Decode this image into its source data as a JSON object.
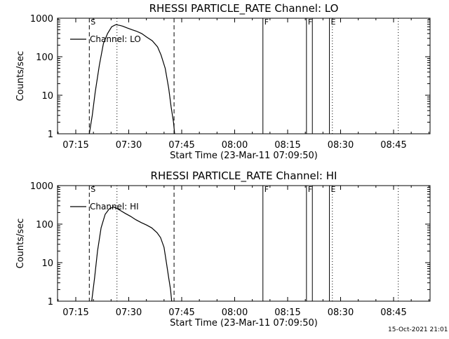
{
  "timestamp": "15-Oct-2021 21:01",
  "chart_data": [
    {
      "type": "line",
      "title": "RHESSI PARTICLE_RATE Channel: LO",
      "xlabel": "Start Time (23-Mar-11 07:09:50)",
      "ylabel": "Counts/sec",
      "yscale": "log",
      "ylim": [
        1,
        1000
      ],
      "xlim": [
        "07:09:50",
        "08:55:20"
      ],
      "x_ticks": [
        "07:15",
        "07:30",
        "07:45",
        "08:00",
        "08:15",
        "08:30",
        "08:45"
      ],
      "y_ticks": [
        "1",
        "10",
        "100",
        "1000"
      ],
      "legend": {
        "position": "top-left"
      },
      "grid": false,
      "series": [
        {
          "name": "Channel: LO",
          "x": [
            "07:18:50",
            "07:19:40",
            "07:20:30",
            "07:21:40",
            "07:22:50",
            "07:24:00",
            "07:25:10",
            "07:26:20",
            "07:27:30",
            "07:28:20",
            "07:29:30",
            "07:31:00",
            "07:32:10",
            "07:33:40",
            "07:35:10",
            "07:36:40",
            "07:38:10",
            "07:39:10",
            "07:40:20",
            "07:41:20",
            "07:42:00",
            "07:42:40",
            "07:43:00"
          ],
          "values": [
            1,
            3,
            12,
            60,
            220,
            400,
            600,
            680,
            650,
            620,
            560,
            500,
            460,
            400,
            320,
            260,
            180,
            110,
            50,
            15,
            5,
            2,
            1
          ]
        }
      ],
      "annotations": [
        {
          "x": "07:18:50",
          "style": "dashed",
          "label": "S"
        },
        {
          "x": "07:42:50",
          "style": "dashed",
          "label": ""
        },
        {
          "x": "07:26:40",
          "style": "dotted",
          "label": ""
        },
        {
          "x": "08:08:00",
          "style": "solid",
          "label": "F"
        },
        {
          "x": "08:20:20",
          "style": "solid",
          "label": "F"
        },
        {
          "x": "08:22:00",
          "style": "solid",
          "label": ""
        },
        {
          "x": "08:26:50",
          "style": "solid",
          "label": "E"
        },
        {
          "x": "08:27:40",
          "style": "dotted",
          "label": ""
        },
        {
          "x": "08:46:20",
          "style": "dotted",
          "label": ""
        }
      ]
    },
    {
      "type": "line",
      "title": "RHESSI PARTICLE_RATE Channel: HI",
      "xlabel": "Start Time (23-Mar-11 07:09:50)",
      "ylabel": "Counts/sec",
      "yscale": "log",
      "ylim": [
        1,
        1000
      ],
      "xlim": [
        "07:09:50",
        "08:55:20"
      ],
      "x_ticks": [
        "07:15",
        "07:30",
        "07:45",
        "08:00",
        "08:15",
        "08:30",
        "08:45"
      ],
      "y_ticks": [
        "1",
        "10",
        "100",
        "1000"
      ],
      "legend": {
        "position": "top-left"
      },
      "grid": false,
      "series": [
        {
          "name": "Channel: HI",
          "x": [
            "07:19:30",
            "07:20:20",
            "07:21:10",
            "07:22:10",
            "07:23:20",
            "07:24:30",
            "07:25:40",
            "07:26:30",
            "07:27:30",
            "07:29:00",
            "07:30:30",
            "07:32:00",
            "07:33:30",
            "07:35:00",
            "07:36:30",
            "07:38:00",
            "07:39:00",
            "07:40:00",
            "07:40:40",
            "07:41:20",
            "07:41:50",
            "07:42:10"
          ],
          "values": [
            1,
            4,
            20,
            80,
            180,
            250,
            280,
            260,
            230,
            190,
            160,
            130,
            110,
            95,
            80,
            60,
            45,
            25,
            10,
            4,
            2,
            1
          ]
        }
      ],
      "annotations": [
        {
          "x": "07:18:50",
          "style": "dashed",
          "label": "S"
        },
        {
          "x": "07:42:50",
          "style": "dashed",
          "label": ""
        },
        {
          "x": "07:26:40",
          "style": "dotted",
          "label": ""
        },
        {
          "x": "08:08:00",
          "style": "solid",
          "label": "F"
        },
        {
          "x": "08:20:20",
          "style": "solid",
          "label": "F"
        },
        {
          "x": "08:22:00",
          "style": "solid",
          "label": ""
        },
        {
          "x": "08:26:50",
          "style": "solid",
          "label": "E"
        },
        {
          "x": "08:27:40",
          "style": "dotted",
          "label": ""
        },
        {
          "x": "08:46:20",
          "style": "dotted",
          "label": ""
        }
      ]
    }
  ]
}
